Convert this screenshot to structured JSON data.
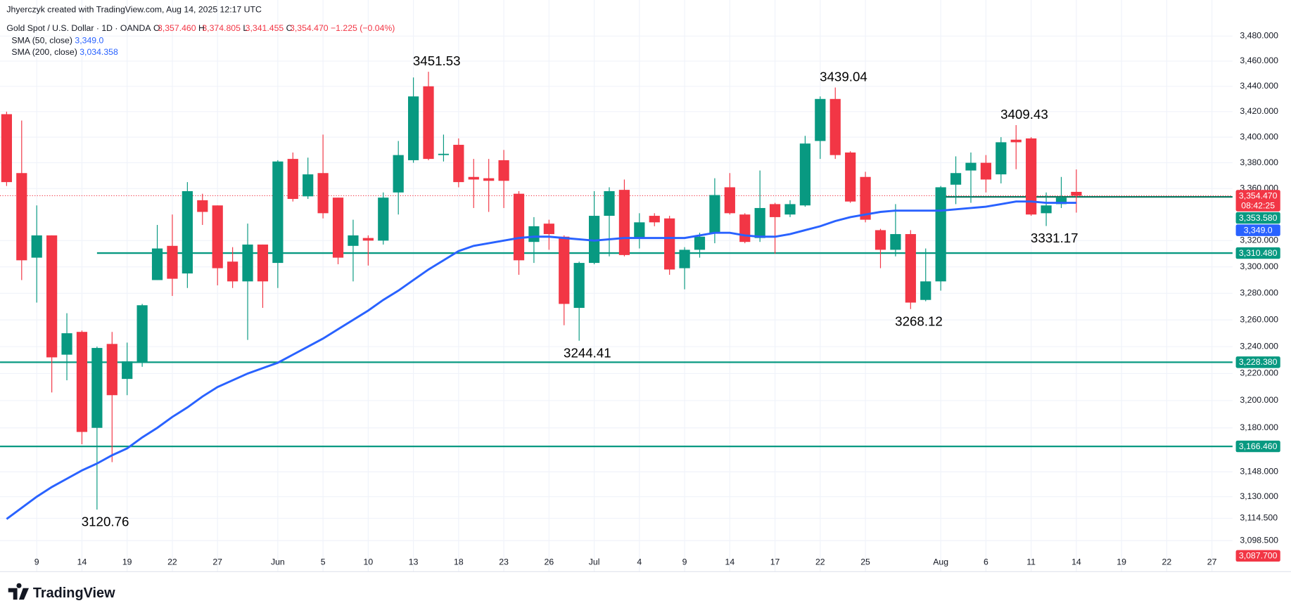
{
  "header": {
    "credit": "Jhyerczyk created with TradingView.com, Aug 14, 2025 12:17 UTC",
    "brand": "TradingView"
  },
  "chart_data": {
    "type": "candlestick",
    "symbol": "Gold Spot / U.S. Dollar · 1D · OANDA",
    "ohlc_legend": {
      "o_label": "O",
      "o": "3,357.460",
      "h_label": "H",
      "h": "3,374.805",
      "l_label": "L",
      "l": "3,341.455",
      "c_label": "C",
      "c": "3,354.470",
      "change": "−1.225 (−0.04%)"
    },
    "indicators": [
      {
        "name": "SMA (50, close)",
        "value_label": "3,349.0",
        "color": "#2962ff"
      },
      {
        "name": "SMA (200, close)",
        "value_label": "3,034.358",
        "color": "#2962ff"
      }
    ],
    "categories": [
      null,
      null,
      "9",
      null,
      null,
      "14",
      null,
      null,
      "19",
      null,
      null,
      "22",
      null,
      null,
      "27",
      null,
      null,
      null,
      "Jun",
      null,
      null,
      "5",
      null,
      null,
      "10",
      null,
      null,
      "13",
      null,
      null,
      "18",
      null,
      null,
      "23",
      null,
      null,
      "26",
      null,
      null,
      "Jul",
      null,
      null,
      "4",
      null,
      null,
      "9",
      null,
      null,
      "14",
      null,
      null,
      "17",
      null,
      null,
      "22",
      null,
      null,
      "25",
      null,
      null,
      null,
      null,
      "Aug",
      null,
      null,
      "6",
      null,
      null,
      "11",
      null,
      null,
      "14",
      null,
      null,
      "19",
      null,
      null,
      "22",
      null,
      null,
      "27"
    ],
    "open": [
      3418,
      3372,
      3307,
      3324,
      3234,
      3251,
      3180,
      3242,
      3216,
      3228,
      3290,
      3316,
      3295,
      3351,
      3347,
      3304,
      3289,
      3317,
      3303,
      3383,
      3354,
      3372,
      3353,
      3316,
      3322,
      3320,
      3357,
      3382,
      3440,
      3386,
      3394,
      3369,
      3368,
      3382,
      3356,
      3319,
      3333,
      3323,
      3269,
      3303,
      3339,
      3359,
      3322,
      3339,
      3337,
      3299,
      3313,
      3326,
      3361,
      3340,
      3322,
      3348,
      3340,
      3347,
      3397,
      3430,
      3388,
      3369,
      3328,
      3313,
      3325,
      3275,
      3289,
      3363,
      3374,
      3380,
      3371,
      3398,
      3399,
      3341,
      3348,
      3357.46,
      null,
      null,
      null,
      null,
      null,
      null,
      null,
      null,
      null
    ],
    "high": [
      3420,
      3413,
      3347,
      3324,
      3265,
      3252,
      3240,
      3251,
      3243,
      3272,
      3332,
      3340,
      3365,
      3356,
      3347,
      3315,
      3333,
      3317,
      3382,
      3388,
      3384,
      3402,
      3353,
      3336,
      3324,
      3357,
      3397,
      3447,
      3451.53,
      3402,
      3399,
      3383,
      3383,
      3390,
      3358,
      3338,
      3336,
      3324,
      3304,
      3358,
      3361,
      3367,
      3341,
      3341,
      3339,
      3315,
      3326,
      3368,
      3372,
      3341,
      3374,
      3349,
      3351,
      3401,
      3432,
      3439.04,
      3389,
      3373,
      3329,
      3348,
      3328,
      3314,
      3362,
      3385,
      3388,
      3386,
      3400,
      3409.43,
      3400,
      3357,
      3369,
      3374.805,
      null,
      null,
      null,
      null,
      null,
      null,
      null,
      null,
      null
    ],
    "low": [
      3362,
      3290,
      3273,
      3206,
      3215,
      3168,
      3120.76,
      3155,
      3204,
      3225,
      3290,
      3278,
      3284,
      3332,
      3286,
      3284,
      3245,
      3269,
      3284,
      3350,
      3352,
      3337,
      3302,
      3289,
      3301,
      3317,
      3340,
      3380,
      3382,
      3381,
      3361,
      3345,
      3342,
      3345,
      3294,
      3303,
      3313,
      3256,
      3244.41,
      3302,
      3308,
      3308,
      3314,
      3331,
      3294,
      3283,
      3307,
      3318,
      3340,
      3318,
      3319,
      3310,
      3338,
      3346,
      3383,
      3383,
      3349,
      3334,
      3299,
      3308,
      3268.12,
      3274,
      3282,
      3348,
      3349,
      3357,
      3364,
      3375,
      3339,
      3331.17,
      3345,
      3341.455,
      null,
      null,
      null,
      null,
      null,
      null,
      null,
      null,
      null
    ],
    "close": [
      3365,
      3305,
      3324,
      3232,
      3250,
      3177,
      3239,
      3204,
      3229,
      3271,
      3314,
      3291,
      3358,
      3342,
      3299,
      3289,
      3317,
      3289,
      3381,
      3352,
      3371,
      3341,
      3307,
      3324,
      3320,
      3353,
      3386,
      3432,
      3383,
      3387,
      3365,
      3367,
      3366,
      3366,
      3305,
      3331,
      3325,
      3272,
      3303,
      3339,
      3358,
      3309,
      3334,
      3334,
      3298,
      3313,
      3323,
      3355,
      3341,
      3319,
      3345,
      3338,
      3348,
      3395,
      3430,
      3386,
      3350,
      3336,
      3313,
      3325,
      3273,
      3289,
      3361,
      3372,
      3380,
      3367,
      3396,
      3396,
      3340,
      3347,
      3353,
      3354.47,
      null,
      null,
      null,
      null,
      null,
      null,
      null,
      null,
      null
    ],
    "up_color": "#089981",
    "down_color": "#f23645",
    "series": [
      {
        "name": "SMA (50, close)",
        "color": "#2962ff",
        "values": [
          3114,
          3122,
          3130,
          3137,
          3143,
          3149,
          3154,
          3160,
          3165,
          3173,
          3180,
          3188,
          3195,
          3203,
          3210,
          3215,
          3220,
          3224,
          3228,
          3234,
          3240,
          3246,
          3253,
          3260,
          3267,
          3275,
          3282,
          3290,
          3298,
          3305,
          3312,
          3316,
          3318,
          3320,
          3322,
          3323,
          3323,
          3322,
          3321,
          3320,
          3321,
          3322,
          3322,
          3322,
          3322,
          3322,
          3324,
          3326,
          3326,
          3324,
          3323,
          3323,
          3325,
          3328,
          3331,
          3335,
          3338,
          3340,
          3342,
          3343,
          3343,
          3343,
          3343,
          3344,
          3345,
          3346,
          3348,
          3350,
          3350,
          3349,
          3349,
          3349,
          null,
          null,
          null,
          null,
          null,
          null,
          null,
          null,
          null
        ]
      }
    ],
    "ylim": [
      3076.5,
      3509
    ],
    "log_scale": true,
    "grid": true,
    "yticks": [
      {
        "value": 3480,
        "label": "3,480.000"
      },
      {
        "value": 3460,
        "label": "3,460.000"
      },
      {
        "value": 3440,
        "label": "3,440.000"
      },
      {
        "value": 3420,
        "label": "3,420.000"
      },
      {
        "value": 3400,
        "label": "3,400.000"
      },
      {
        "value": 3380,
        "label": "3,380.000"
      },
      {
        "value": 3360,
        "label": "3,360.000"
      },
      {
        "value": 3320,
        "label": "3,320.000"
      },
      {
        "value": 3300,
        "label": "3,300.000"
      },
      {
        "value": 3280,
        "label": "3,280.000"
      },
      {
        "value": 3260,
        "label": "3,260.000"
      },
      {
        "value": 3240,
        "label": "3,240.000"
      },
      {
        "value": 3220,
        "label": "3,220.000"
      },
      {
        "value": 3200,
        "label": "3,200.000"
      },
      {
        "value": 3180,
        "label": "3,180.000"
      },
      {
        "value": 3148,
        "label": "3,148.000"
      },
      {
        "value": 3130,
        "label": "3,130.000"
      },
      {
        "value": 3114.5,
        "label": "3,114.500"
      },
      {
        "value": 3098.5,
        "label": "3,098.500"
      }
    ],
    "hlines": [
      {
        "value": 3310.48,
        "start": 6,
        "color": "#089981"
      },
      {
        "value": 3228.38,
        "start": 0,
        "color": "#089981"
      },
      {
        "value": 3166.46,
        "start": 0,
        "color": "#089981"
      },
      {
        "value": 3353.58,
        "start": 62,
        "color": "#0b7a62"
      }
    ],
    "last_price": {
      "value": 3354.47,
      "color": "#f23645"
    },
    "price_labels": [
      {
        "value": 3354.47,
        "label": "3,354.470",
        "countdown": "08:42:25",
        "color": "#f23645"
      },
      {
        "value": 3353.58,
        "label": "3,353.580",
        "color": "#089981"
      },
      {
        "value": 3349.0,
        "label": "3,349.0",
        "color": "#2962ff"
      },
      {
        "value": 3310.48,
        "label": "3,310.480",
        "color": "#089981"
      },
      {
        "value": 3228.38,
        "label": "3,228.380",
        "color": "#089981"
      },
      {
        "value": 3166.46,
        "label": "3,166.460",
        "color": "#089981"
      },
      {
        "value": 3087.7,
        "label": "3,087.700",
        "color": "#f23645"
      }
    ],
    "annotations": [
      {
        "index": 28,
        "value": 3451.53,
        "position": "above"
      },
      {
        "index": 55,
        "value": 3439.04,
        "position": "above"
      },
      {
        "index": 67,
        "value": 3409.43,
        "position": "above"
      },
      {
        "index": 6,
        "value": 3120.76,
        "position": "below"
      },
      {
        "index": 38,
        "value": 3244.41,
        "position": "below"
      },
      {
        "index": 60,
        "value": 3268.12,
        "position": "below"
      },
      {
        "index": 69,
        "value": 3331.17,
        "position": "below"
      }
    ]
  }
}
